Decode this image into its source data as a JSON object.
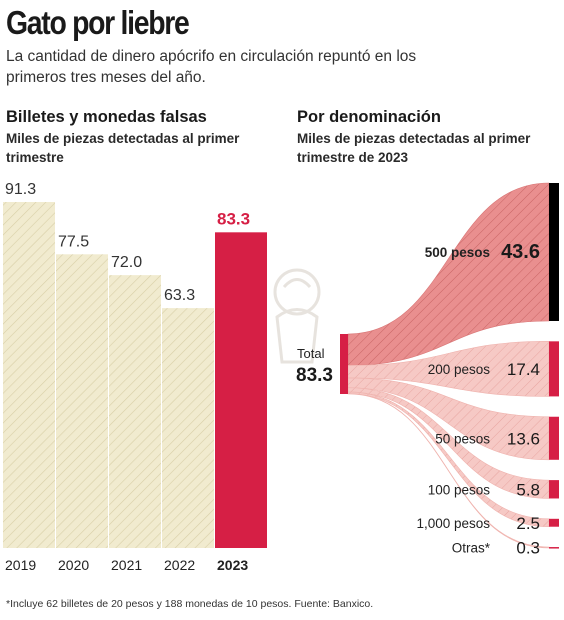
{
  "title": "Gato por liebre",
  "subtitle": "La cantidad de dinero apócrifo en circulación repuntó en los primeros tres meses del año.",
  "left": {
    "title": "Billetes y monedas falsas",
    "subtitle": "Miles de piezas detectadas al primer trimestre"
  },
  "right": {
    "title": "Por denominación",
    "subtitle": "Miles de piezas detectadas al primer trimestre de 2023",
    "total_label": "Total",
    "total_value": "83.3"
  },
  "footnote": "*Incluye 62 billetes de 20 pesos y 188 monedas de 10 pesos. Fuente: Banxico.",
  "colors": {
    "cream": "#f1ebcf",
    "cream_hatch": "#d8cfa6",
    "highlight": "#d61f45",
    "flow_dark": "#e98f8f",
    "flow_light": "#f6c9c5",
    "black_bar": "#000000"
  },
  "chart_data": [
    {
      "type": "bar",
      "categories": [
        "2019",
        "2020",
        "2021",
        "2022",
        "2023"
      ],
      "values": [
        91.3,
        77.5,
        72.0,
        63.3,
        83.3
      ],
      "labels": [
        "91.3",
        "77.5",
        "72.0",
        "63.3",
        "83.3"
      ],
      "highlight_index": 4,
      "ylim": [
        0,
        91.3
      ]
    },
    {
      "type": "sankey",
      "source": "Total",
      "total": 83.3,
      "targets": [
        {
          "name": "500 pesos",
          "value": 43.6,
          "label": "43.6"
        },
        {
          "name": "200 pesos",
          "value": 17.4,
          "label": "17.4"
        },
        {
          "name": "50 pesos",
          "value": 13.6,
          "label": "13.6"
        },
        {
          "name": "100 pesos",
          "value": 5.8,
          "label": "5.8"
        },
        {
          "name": "1,000 pesos",
          "value": 2.5,
          "label": "2.5"
        },
        {
          "name": "Otras*",
          "value": 0.3,
          "label": "0.3"
        }
      ]
    }
  ]
}
